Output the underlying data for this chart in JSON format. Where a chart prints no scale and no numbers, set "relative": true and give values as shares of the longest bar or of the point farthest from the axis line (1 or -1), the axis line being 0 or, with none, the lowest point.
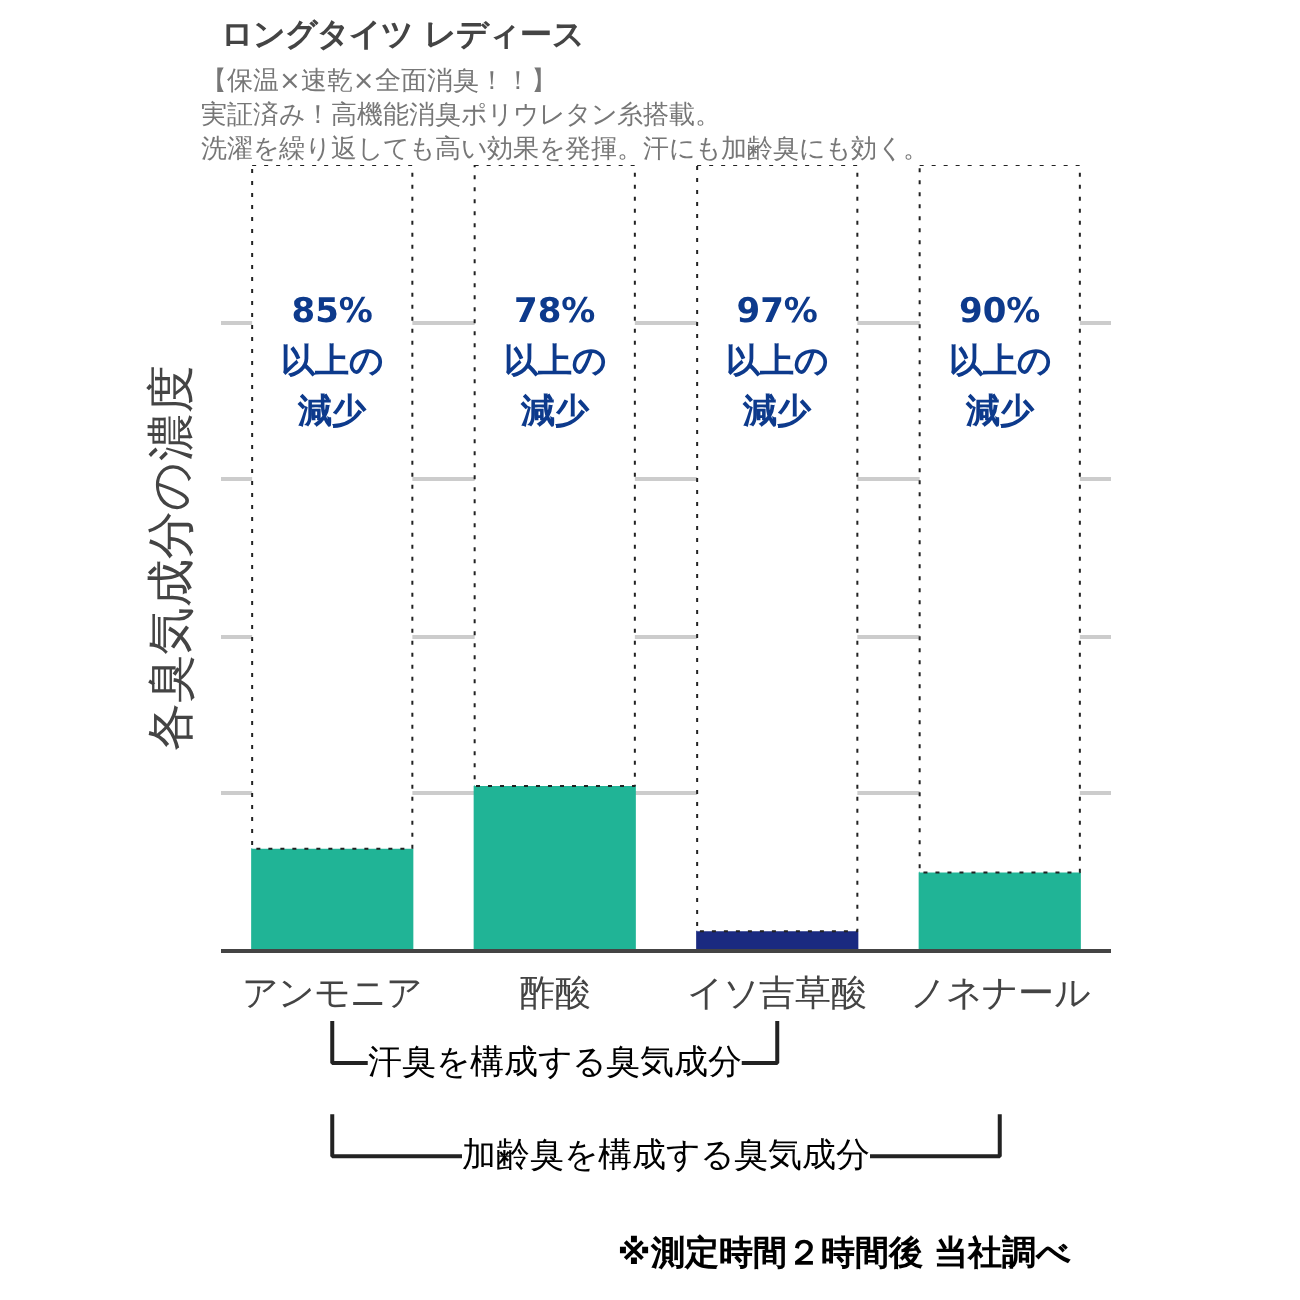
{
  "chart_data": {
    "type": "bar",
    "title": "ロングタイツ レディース",
    "subtitle": "【保温×速乾×全面消臭！！】",
    "ylabel": "各臭気成分の濃度",
    "categories": [
      "アンモニア",
      "酢酸",
      "イソ吉草酸",
      "ノネナール"
    ],
    "relative": true,
    "stacked": true,
    "grid": "y",
    "series": [
      {
        "colors": [
          "#20b496",
          "#20b496",
          "#1a2a80",
          "#20b496"
        ],
        "values": [
          0.13,
          0.21,
          0.025,
          0.1
        ]
      },
      {
        "color": "#ffffff",
        "line_style": "dotted",
        "values": [
          0.87,
          0.79,
          0.975,
          0.9
        ]
      }
    ],
    "annotations": [
      "実証済み！高機能消臭ポリウレタン糸搭載。",
      "洗濯を繰り返しても高い効果を発揮。汗にも加齢臭にも効く。",
      "85%以上の減少",
      "78%以上の減少",
      "97%以上の減少",
      "90%以上の減少",
      "汗臭を構成する臭気成分",
      "加齢臭を構成する臭気成分",
      "※測定時間２時間後 当社調べ"
    ]
  }
}
